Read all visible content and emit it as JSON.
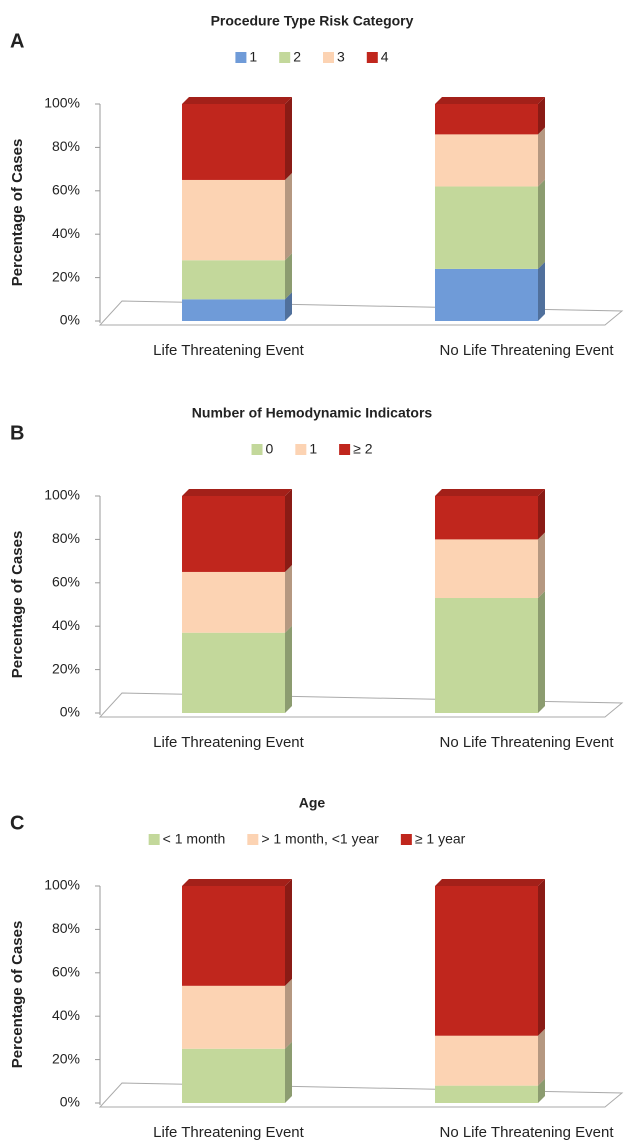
{
  "chart_data": [
    {
      "type": "bar",
      "stacked": true,
      "label": "A",
      "title": "Procedure Type Risk Category",
      "y_label": "Percentage of Cases",
      "categories": [
        "Life Threatening Event",
        "No Life Threatening Event"
      ],
      "series": [
        {
          "name": "1",
          "color": "#6f9bd8",
          "values": [
            10,
            24
          ]
        },
        {
          "name": "2",
          "color": "#c3d89b",
          "values": [
            18,
            38
          ]
        },
        {
          "name": "3",
          "color": "#fcd3b3",
          "values": [
            37,
            24
          ]
        },
        {
          "name": "4",
          "color": "#c0261d",
          "values": [
            35,
            14
          ]
        }
      ],
      "ylim": [
        0,
        100
      ],
      "yticks": [
        {
          "value": 0,
          "label": "0%"
        },
        {
          "value": 20,
          "label": "20%"
        },
        {
          "value": 40,
          "label": "40%"
        },
        {
          "value": 60,
          "label": "60%"
        },
        {
          "value": 80,
          "label": "80%"
        },
        {
          "value": 100,
          "label": "100%"
        }
      ]
    },
    {
      "type": "bar",
      "stacked": true,
      "label": "B",
      "title": "Number of Hemodynamic Indicators",
      "y_label": "Percentage of Cases",
      "categories": [
        "Life Threatening Event",
        "No Life Threatening Event"
      ],
      "series": [
        {
          "name": "0",
          "color": "#c3d89b",
          "values": [
            37,
            53
          ]
        },
        {
          "name": "1",
          "color": "#fcd3b3",
          "values": [
            28,
            27
          ]
        },
        {
          "name": "≥ 2",
          "color": "#c0261d",
          "values": [
            35,
            20
          ]
        }
      ],
      "ylim": [
        0,
        100
      ],
      "yticks": [
        {
          "value": 0,
          "label": "0%"
        },
        {
          "value": 20,
          "label": "20%"
        },
        {
          "value": 40,
          "label": "40%"
        },
        {
          "value": 60,
          "label": "60%"
        },
        {
          "value": 80,
          "label": "80%"
        },
        {
          "value": 100,
          "label": "100%"
        }
      ]
    },
    {
      "type": "bar",
      "stacked": true,
      "label": "C",
      "title": "Age",
      "y_label": "Percentage of Cases",
      "categories": [
        "Life Threatening Event",
        "No Life Threatening Event"
      ],
      "series": [
        {
          "name": "< 1 month",
          "color": "#c3d89b",
          "values": [
            25,
            8
          ]
        },
        {
          "name": "> 1 month, <1 year",
          "color": "#fcd3b3",
          "values": [
            29,
            23
          ]
        },
        {
          "name": "≥ 1 year",
          "color": "#c0261d",
          "values": [
            46,
            69
          ]
        }
      ],
      "ylim": [
        0,
        100
      ],
      "yticks": [
        {
          "value": 0,
          "label": "0%"
        },
        {
          "value": 20,
          "label": "20%"
        },
        {
          "value": 40,
          "label": "40%"
        },
        {
          "value": 60,
          "label": "60%"
        },
        {
          "value": 80,
          "label": "80%"
        },
        {
          "value": 100,
          "label": "100%"
        }
      ]
    }
  ]
}
